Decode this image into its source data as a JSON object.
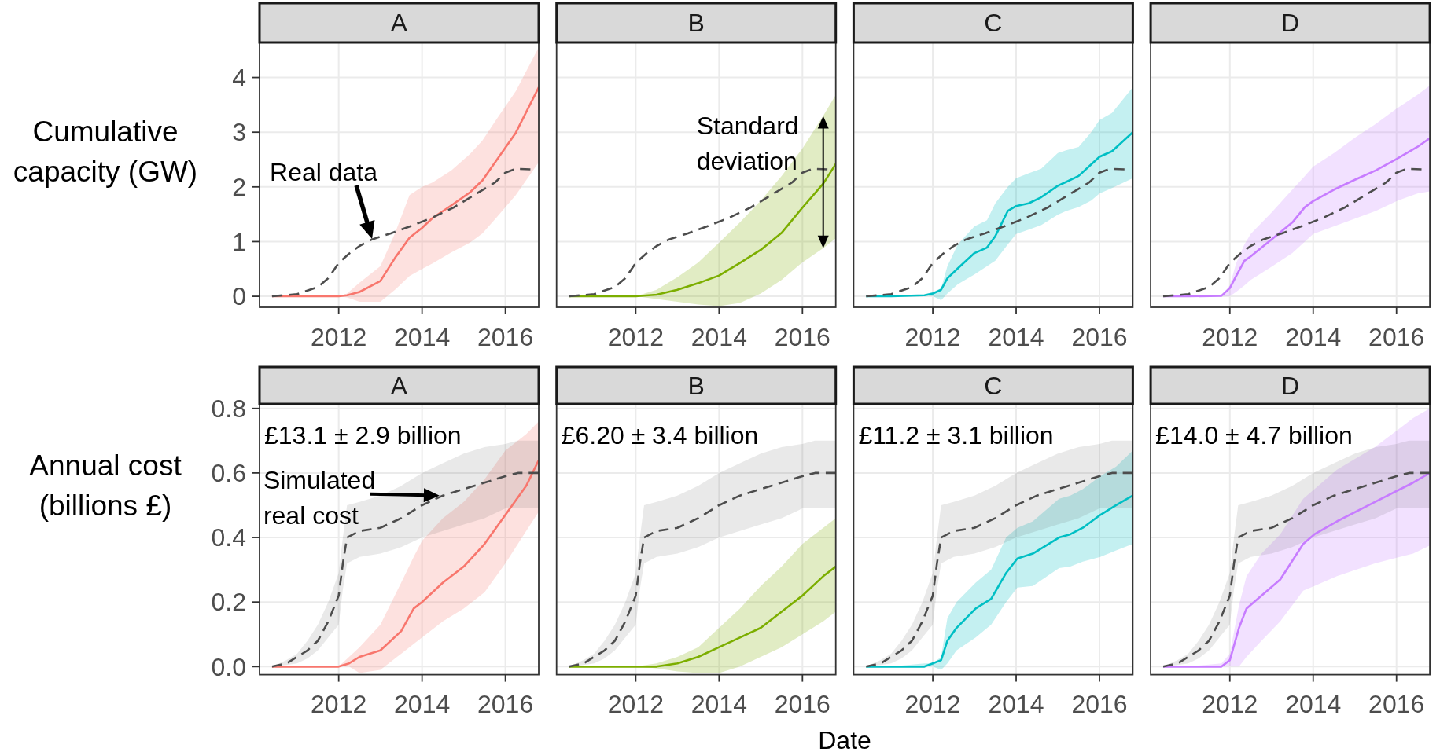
{
  "chart_data": [
    {
      "type": "line",
      "title": "A",
      "ylabel": "Cumulative capacity (GW)",
      "xlim": [
        2010.1,
        2016.8
      ],
      "xticks": [
        2012,
        2014,
        2016
      ],
      "ylim": [
        -0.2,
        4.64
      ],
      "yticks": [
        0,
        1,
        2,
        3,
        4
      ],
      "grid": true,
      "annotations": [
        {
          "text": "Real data",
          "x": 2012.8,
          "y": 1.05
        }
      ],
      "series": [
        {
          "color": "#f8766d",
          "x": [
            2010.4,
            2011.0,
            2011.5,
            2012.0,
            2012.2,
            2012.5,
            2013.0,
            2013.35,
            2013.7,
            2014.0,
            2014.25,
            2014.7,
            2015.15,
            2015.45,
            2015.8,
            2016.25,
            2016.8
          ],
          "values": [
            0,
            0,
            0,
            0,
            0.02,
            0.08,
            0.28,
            0.7,
            1.07,
            1.25,
            1.43,
            1.66,
            1.9,
            2.12,
            2.5,
            2.99,
            3.82
          ],
          "lower": [
            0,
            0,
            0,
            0,
            -0.02,
            -0.1,
            -0.1,
            0.12,
            0.37,
            0.5,
            0.6,
            0.8,
            0.98,
            1.15,
            1.45,
            1.85,
            2.45
          ],
          "upper": [
            0,
            0,
            0,
            0,
            0.05,
            0.25,
            0.55,
            1.15,
            1.85,
            2.0,
            2.08,
            2.3,
            2.6,
            2.85,
            3.25,
            3.75,
            4.55
          ]
        },
        {
          "color": "#4d4d4d",
          "line_style": "dashed",
          "x": [
            2010.4,
            2011.0,
            2011.5,
            2011.75,
            2012.0,
            2012.25,
            2012.5,
            2012.8,
            2013.25,
            2013.75,
            2014.25,
            2014.75,
            2015.25,
            2015.75,
            2016.0,
            2016.25,
            2016.6
          ],
          "values": [
            0,
            0.04,
            0.17,
            0.33,
            0.61,
            0.78,
            0.92,
            1.04,
            1.15,
            1.29,
            1.44,
            1.62,
            1.85,
            2.08,
            2.26,
            2.33,
            2.32
          ]
        }
      ]
    },
    {
      "type": "line",
      "title": "B",
      "xlim": [
        2010.1,
        2016.8
      ],
      "xticks": [
        2012,
        2014,
        2016
      ],
      "ylim": [
        -0.2,
        4.64
      ],
      "yticks": [
        0,
        1,
        2,
        3,
        4
      ],
      "tick_labels": "x",
      "grid": true,
      "annotations": [
        "Standard deviation"
      ],
      "series": [
        {
          "color": "#7cae00",
          "x": [
            2010.4,
            2011.0,
            2011.5,
            2012.0,
            2012.5,
            2013.0,
            2013.5,
            2014.0,
            2014.5,
            2015.0,
            2015.5,
            2016.0,
            2016.5,
            2016.8
          ],
          "values": [
            0,
            0,
            0,
            0,
            0.03,
            0.12,
            0.24,
            0.38,
            0.61,
            0.85,
            1.16,
            1.62,
            2.06,
            2.42
          ],
          "lower": [
            0,
            0,
            0,
            0,
            -0.05,
            -0.1,
            -0.15,
            -0.18,
            -0.12,
            0.05,
            0.3,
            0.62,
            0.88,
            1.06
          ],
          "upper": [
            0,
            0,
            0,
            0,
            0.12,
            0.35,
            0.62,
            0.98,
            1.35,
            1.75,
            2.2,
            2.7,
            3.3,
            3.68
          ]
        },
        {
          "color": "#4d4d4d",
          "line_style": "dashed",
          "x": [
            2010.4,
            2011.0,
            2011.5,
            2011.75,
            2012.0,
            2012.25,
            2012.5,
            2012.8,
            2013.25,
            2013.75,
            2014.25,
            2014.75,
            2015.25,
            2015.75,
            2016.0,
            2016.25,
            2016.6
          ],
          "values": [
            0,
            0.04,
            0.17,
            0.33,
            0.61,
            0.78,
            0.92,
            1.04,
            1.15,
            1.29,
            1.44,
            1.62,
            1.85,
            2.08,
            2.26,
            2.33,
            2.32
          ]
        }
      ]
    },
    {
      "type": "line",
      "title": "C",
      "xlim": [
        2010.1,
        2016.8
      ],
      "xticks": [
        2012,
        2014,
        2016
      ],
      "ylim": [
        -0.2,
        4.64
      ],
      "yticks": [
        0,
        1,
        2,
        3,
        4
      ],
      "tick_labels": "x",
      "grid": true,
      "series": [
        {
          "color": "#00bfc4",
          "x": [
            2010.4,
            2011.0,
            2011.8,
            2012.0,
            2012.2,
            2012.35,
            2012.6,
            2013.0,
            2013.3,
            2013.5,
            2013.8,
            2014.0,
            2014.3,
            2014.6,
            2015.0,
            2015.2,
            2015.5,
            2015.8,
            2016.0,
            2016.3,
            2016.8
          ],
          "values": [
            0,
            0,
            0.02,
            0.05,
            0.12,
            0.33,
            0.51,
            0.79,
            0.89,
            1.1,
            1.56,
            1.65,
            1.7,
            1.81,
            2.02,
            2.09,
            2.2,
            2.41,
            2.55,
            2.65,
            3.0
          ],
          "lower": [
            0,
            0,
            0.01,
            0,
            -0.07,
            0.05,
            0.22,
            0.4,
            0.55,
            0.65,
            0.95,
            1.14,
            1.22,
            1.3,
            1.49,
            1.56,
            1.63,
            1.75,
            1.88,
            1.98,
            2.16
          ],
          "upper": [
            0,
            0,
            0.03,
            0.08,
            0.15,
            0.55,
            0.95,
            1.28,
            1.39,
            1.7,
            2.0,
            2.16,
            2.25,
            2.33,
            2.62,
            2.67,
            2.73,
            3.0,
            3.22,
            3.35,
            3.82
          ]
        },
        {
          "color": "#4d4d4d",
          "line_style": "dashed",
          "x": [
            2010.4,
            2011.0,
            2011.5,
            2011.75,
            2012.0,
            2012.25,
            2012.5,
            2012.8,
            2013.25,
            2013.75,
            2014.25,
            2014.75,
            2015.25,
            2015.75,
            2016.0,
            2016.25,
            2016.6
          ],
          "values": [
            0,
            0.04,
            0.17,
            0.33,
            0.61,
            0.78,
            0.92,
            1.04,
            1.15,
            1.29,
            1.44,
            1.62,
            1.85,
            2.08,
            2.26,
            2.33,
            2.32
          ]
        }
      ]
    },
    {
      "type": "line",
      "title": "D",
      "xlim": [
        2010.1,
        2016.8
      ],
      "xticks": [
        2012,
        2014,
        2016
      ],
      "ylim": [
        -0.2,
        4.64
      ],
      "yticks": [
        0,
        1,
        2,
        3,
        4
      ],
      "tick_labels": "x",
      "grid": true,
      "series": [
        {
          "color": "#c77cff",
          "x": [
            2010.4,
            2011.0,
            2011.8,
            2012.0,
            2012.15,
            2012.35,
            2012.5,
            2013.0,
            2013.5,
            2013.8,
            2014.0,
            2014.5,
            2015.0,
            2015.5,
            2016.0,
            2016.5,
            2016.8
          ],
          "values": [
            0,
            0,
            0.01,
            0.15,
            0.37,
            0.65,
            0.73,
            1.04,
            1.35,
            1.63,
            1.74,
            1.95,
            2.13,
            2.3,
            2.51,
            2.73,
            2.89
          ],
          "lower": [
            0,
            0,
            0,
            0,
            0.08,
            0.2,
            0.3,
            0.54,
            0.79,
            1.0,
            1.14,
            1.28,
            1.42,
            1.56,
            1.74,
            1.88,
            1.92
          ],
          "upper": [
            0,
            0,
            0.02,
            0.2,
            0.6,
            0.95,
            1.14,
            1.53,
            1.95,
            2.2,
            2.37,
            2.62,
            2.9,
            3.15,
            3.43,
            3.68,
            3.85
          ]
        },
        {
          "color": "#4d4d4d",
          "line_style": "dashed",
          "x": [
            2010.4,
            2011.0,
            2011.5,
            2011.75,
            2012.0,
            2012.25,
            2012.5,
            2012.8,
            2013.25,
            2013.75,
            2014.25,
            2014.75,
            2015.25,
            2015.75,
            2016.0,
            2016.25,
            2016.6
          ],
          "values": [
            0,
            0.04,
            0.17,
            0.33,
            0.61,
            0.78,
            0.92,
            1.04,
            1.15,
            1.29,
            1.44,
            1.62,
            1.85,
            2.08,
            2.26,
            2.33,
            2.32
          ]
        }
      ]
    },
    {
      "type": "line",
      "title": "A",
      "subtitle": "£13.1 ± 2.9 billion",
      "ylabel": "Annual cost (billions £)",
      "xlim": [
        2010.1,
        2016.8
      ],
      "xticks": [
        2012,
        2014,
        2016
      ],
      "ylim": [
        -0.025,
        0.814
      ],
      "yticks": [
        {
          "value": 0,
          "label": "0.0"
        },
        0.2,
        0.4,
        0.6,
        0.8
      ],
      "grid": true,
      "annotations": [
        {
          "text": "Simulated real cost",
          "x": 2014.42,
          "y": 0.53
        }
      ],
      "series": [
        {
          "color": "#f8766d",
          "x": [
            2010.4,
            2011.0,
            2011.5,
            2012.0,
            2012.25,
            2012.5,
            2013.0,
            2013.5,
            2013.8,
            2014.0,
            2014.5,
            2015.0,
            2015.5,
            2016.0,
            2016.5,
            2016.8
          ],
          "values": [
            0,
            0,
            0,
            0,
            0.01,
            0.03,
            0.05,
            0.11,
            0.18,
            0.2,
            0.26,
            0.31,
            0.38,
            0.47,
            0.56,
            0.64
          ],
          "lower": [
            0,
            0,
            0,
            0,
            0,
            -0.02,
            -0.01,
            0.04,
            0.07,
            0.09,
            0.14,
            0.18,
            0.23,
            0.32,
            0.42,
            0.48
          ],
          "upper": [
            0,
            0,
            0,
            0,
            0.03,
            0.06,
            0.13,
            0.26,
            0.34,
            0.39,
            0.46,
            0.51,
            0.58,
            0.67,
            0.72,
            0.76
          ]
        },
        {
          "color": "#4d4d4d",
          "line_style": "dashed",
          "x": [
            2010.4,
            2010.75,
            2011.0,
            2011.25,
            2011.5,
            2011.75,
            2012.0,
            2012.1,
            2012.2,
            2012.5,
            2013.0,
            2013.5,
            2014.0,
            2014.5,
            2015.0,
            2015.5,
            2016.0,
            2016.3,
            2016.8
          ],
          "values": [
            0,
            0.01,
            0.03,
            0.05,
            0.08,
            0.14,
            0.22,
            0.32,
            0.4,
            0.42,
            0.43,
            0.46,
            0.5,
            0.53,
            0.55,
            0.57,
            0.59,
            0.6,
            0.6
          ],
          "lower": [
            0,
            0.005,
            0.01,
            0.025,
            0.05,
            0.09,
            0.13,
            0.24,
            0.32,
            0.34,
            0.35,
            0.37,
            0.4,
            0.42,
            0.44,
            0.46,
            0.49,
            0.49,
            0.49
          ],
          "upper": [
            0,
            0.02,
            0.04,
            0.08,
            0.13,
            0.2,
            0.29,
            0.4,
            0.5,
            0.51,
            0.53,
            0.56,
            0.6,
            0.63,
            0.66,
            0.68,
            0.69,
            0.7,
            0.7
          ]
        }
      ]
    },
    {
      "type": "line",
      "title": "B",
      "subtitle": "£6.20 ± 3.4 billion",
      "xlabel": "Date",
      "xlim": [
        2010.1,
        2016.8
      ],
      "xticks": [
        2012,
        2014,
        2016
      ],
      "ylim": [
        -0.025,
        0.814
      ],
      "yticks": [
        0,
        0.2,
        0.4,
        0.6,
        0.8
      ],
      "tick_labels": "x",
      "grid": true,
      "series": [
        {
          "color": "#7cae00",
          "x": [
            2010.4,
            2011.0,
            2011.5,
            2012.0,
            2012.5,
            2013.0,
            2013.5,
            2014.0,
            2014.5,
            2015.0,
            2015.5,
            2016.0,
            2016.5,
            2016.8
          ],
          "values": [
            0,
            0,
            0,
            0,
            0,
            0.01,
            0.03,
            0.06,
            0.09,
            0.12,
            0.17,
            0.22,
            0.28,
            0.31
          ],
          "lower": [
            0,
            0,
            0,
            0,
            -0.005,
            -0.015,
            -0.02,
            -0.02,
            0,
            0.03,
            0.06,
            0.1,
            0.14,
            0.17
          ],
          "upper": [
            0,
            0,
            0,
            0,
            0.01,
            0.03,
            0.06,
            0.12,
            0.18,
            0.25,
            0.31,
            0.38,
            0.43,
            0.46
          ]
        },
        {
          "color": "#4d4d4d",
          "line_style": "dashed",
          "x": [
            2010.4,
            2010.75,
            2011.0,
            2011.25,
            2011.5,
            2011.75,
            2012.0,
            2012.1,
            2012.2,
            2012.5,
            2013.0,
            2013.5,
            2014.0,
            2014.5,
            2015.0,
            2015.5,
            2016.0,
            2016.3,
            2016.8
          ],
          "values": [
            0,
            0.01,
            0.03,
            0.05,
            0.08,
            0.14,
            0.22,
            0.32,
            0.4,
            0.42,
            0.43,
            0.46,
            0.5,
            0.53,
            0.55,
            0.57,
            0.59,
            0.6,
            0.6
          ],
          "lower": [
            0,
            0.005,
            0.01,
            0.025,
            0.05,
            0.09,
            0.13,
            0.24,
            0.32,
            0.34,
            0.35,
            0.37,
            0.4,
            0.42,
            0.44,
            0.46,
            0.49,
            0.49,
            0.49
          ],
          "upper": [
            0,
            0.02,
            0.04,
            0.08,
            0.13,
            0.2,
            0.29,
            0.4,
            0.5,
            0.51,
            0.53,
            0.56,
            0.6,
            0.63,
            0.66,
            0.68,
            0.69,
            0.7,
            0.7
          ]
        }
      ]
    },
    {
      "type": "line",
      "title": "C",
      "subtitle": "£11.2 ± 3.1 billion",
      "xlim": [
        2010.1,
        2016.8
      ],
      "xticks": [
        2012,
        2014,
        2016
      ],
      "ylim": [
        -0.025,
        0.814
      ],
      "yticks": [
        0,
        0.2,
        0.4,
        0.6,
        0.8
      ],
      "tick_labels": "x",
      "grid": true,
      "series": [
        {
          "color": "#00bfc4",
          "x": [
            2010.4,
            2011.0,
            2011.8,
            2012.0,
            2012.2,
            2012.35,
            2012.57,
            2013.03,
            2013.4,
            2013.76,
            2014.03,
            2014.4,
            2015.03,
            2015.3,
            2015.6,
            2016.02,
            2016.4,
            2016.8
          ],
          "values": [
            0,
            0,
            0,
            0.01,
            0.02,
            0.08,
            0.12,
            0.18,
            0.21,
            0.29,
            0.335,
            0.35,
            0.4,
            0.41,
            0.43,
            0.47,
            0.5,
            0.53
          ],
          "lower": [
            0,
            0,
            0,
            0,
            -0.01,
            0.01,
            0.05,
            0.09,
            0.13,
            0.2,
            0.245,
            0.25,
            0.305,
            0.31,
            0.325,
            0.34,
            0.36,
            0.38
          ],
          "upper": [
            0,
            0,
            0.01,
            0.01,
            0.03,
            0.15,
            0.2,
            0.26,
            0.3,
            0.4,
            0.43,
            0.45,
            0.52,
            0.53,
            0.55,
            0.59,
            0.62,
            0.67
          ]
        },
        {
          "color": "#4d4d4d",
          "line_style": "dashed",
          "x": [
            2010.4,
            2010.75,
            2011.0,
            2011.25,
            2011.5,
            2011.75,
            2012.0,
            2012.1,
            2012.2,
            2012.5,
            2013.0,
            2013.5,
            2014.0,
            2014.5,
            2015.0,
            2015.5,
            2016.0,
            2016.3,
            2016.8
          ],
          "values": [
            0,
            0.01,
            0.03,
            0.05,
            0.08,
            0.14,
            0.22,
            0.32,
            0.4,
            0.42,
            0.43,
            0.46,
            0.5,
            0.53,
            0.55,
            0.57,
            0.59,
            0.6,
            0.6
          ],
          "lower": [
            0,
            0.005,
            0.01,
            0.025,
            0.05,
            0.09,
            0.13,
            0.24,
            0.32,
            0.34,
            0.35,
            0.37,
            0.4,
            0.42,
            0.44,
            0.46,
            0.49,
            0.49,
            0.49
          ],
          "upper": [
            0,
            0.02,
            0.04,
            0.08,
            0.13,
            0.2,
            0.29,
            0.4,
            0.5,
            0.51,
            0.53,
            0.56,
            0.6,
            0.63,
            0.66,
            0.68,
            0.69,
            0.7,
            0.7
          ]
        }
      ]
    },
    {
      "type": "line",
      "title": "D",
      "subtitle": "£14.0 ± 4.7 billion",
      "xlim": [
        2010.1,
        2016.8
      ],
      "xticks": [
        2012,
        2014,
        2016
      ],
      "ylim": [
        -0.025,
        0.814
      ],
      "yticks": [
        0,
        0.2,
        0.4,
        0.6,
        0.8
      ],
      "tick_labels": "x",
      "grid": true,
      "series": [
        {
          "color": "#c77cff",
          "x": [
            2010.4,
            2011.0,
            2011.8,
            2012.0,
            2012.22,
            2012.4,
            2012.76,
            2013.21,
            2013.76,
            2014.03,
            2014.57,
            2015.48,
            2016.4,
            2016.8
          ],
          "values": [
            0,
            0,
            0,
            0.02,
            0.12,
            0.18,
            0.22,
            0.27,
            0.38,
            0.41,
            0.45,
            0.51,
            0.57,
            0.6
          ],
          "lower": [
            0,
            0,
            0,
            0,
            0,
            0.03,
            0.08,
            0.14,
            0.235,
            0.25,
            0.28,
            0.32,
            0.35,
            0.375
          ],
          "upper": [
            0,
            0,
            0.01,
            0.04,
            0.19,
            0.28,
            0.35,
            0.41,
            0.52,
            0.55,
            0.61,
            0.68,
            0.77,
            0.8
          ]
        },
        {
          "color": "#4d4d4d",
          "line_style": "dashed",
          "x": [
            2010.4,
            2010.75,
            2011.0,
            2011.25,
            2011.5,
            2011.75,
            2012.0,
            2012.1,
            2012.2,
            2012.5,
            2013.0,
            2013.5,
            2014.0,
            2014.5,
            2015.0,
            2015.5,
            2016.0,
            2016.3,
            2016.8
          ],
          "values": [
            0,
            0.01,
            0.03,
            0.05,
            0.08,
            0.14,
            0.22,
            0.32,
            0.4,
            0.42,
            0.43,
            0.46,
            0.5,
            0.53,
            0.55,
            0.57,
            0.59,
            0.6,
            0.6
          ],
          "lower": [
            0,
            0.005,
            0.01,
            0.025,
            0.05,
            0.09,
            0.13,
            0.24,
            0.32,
            0.34,
            0.35,
            0.37,
            0.4,
            0.42,
            0.44,
            0.46,
            0.49,
            0.49,
            0.49
          ],
          "upper": [
            0,
            0.02,
            0.04,
            0.08,
            0.13,
            0.2,
            0.29,
            0.4,
            0.5,
            0.51,
            0.53,
            0.56,
            0.6,
            0.63,
            0.66,
            0.68,
            0.69,
            0.7,
            0.7
          ]
        }
      ]
    }
  ]
}
